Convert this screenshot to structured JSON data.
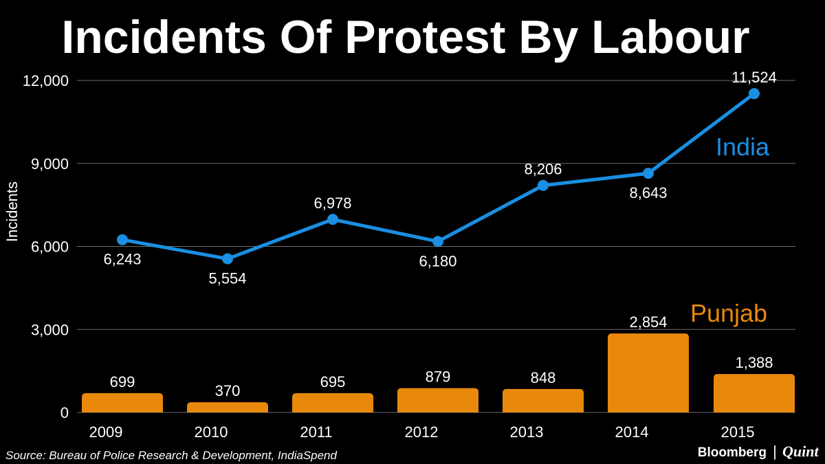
{
  "chart_data": {
    "type": "bar+line",
    "title": "Incidents Of Protest By Labour",
    "ylabel": "Incidents",
    "xlabel": "",
    "ylim": [
      0,
      12000
    ],
    "yticks": [
      0,
      3000,
      6000,
      9000,
      12000
    ],
    "ytick_labels": [
      "0",
      "3,000",
      "6,000",
      "9,000",
      "12,000"
    ],
    "categories": [
      "2009",
      "2010",
      "2011",
      "2012",
      "2013",
      "2014",
      "2015"
    ],
    "grid": true,
    "series": [
      {
        "name": "India",
        "kind": "line",
        "color": "#1a8fe3",
        "values": [
          6243,
          5554,
          6978,
          6180,
          8206,
          8643,
          11524
        ],
        "labels": [
          "6,243",
          "5,554",
          "6,978",
          "6,180",
          "8,206",
          "8,643",
          "11,524"
        ],
        "label_side": [
          "below",
          "below",
          "above",
          "below",
          "above",
          "below",
          "above"
        ]
      },
      {
        "name": "Punjab",
        "kind": "bar",
        "color": "#e8890c",
        "values": [
          699,
          370,
          695,
          879,
          848,
          2854,
          1388
        ],
        "labels": [
          "699",
          "370",
          "695",
          "879",
          "848",
          "2,854",
          "1,388"
        ]
      }
    ]
  },
  "source": "Source: Bureau of Police Research & Development, IndiaSpend",
  "brand": {
    "name1": "Bloomberg",
    "separator": "|",
    "name2": "Quint"
  },
  "colors": {
    "background": "#000000",
    "text": "#ffffff",
    "grid": "#6e6e6e"
  }
}
